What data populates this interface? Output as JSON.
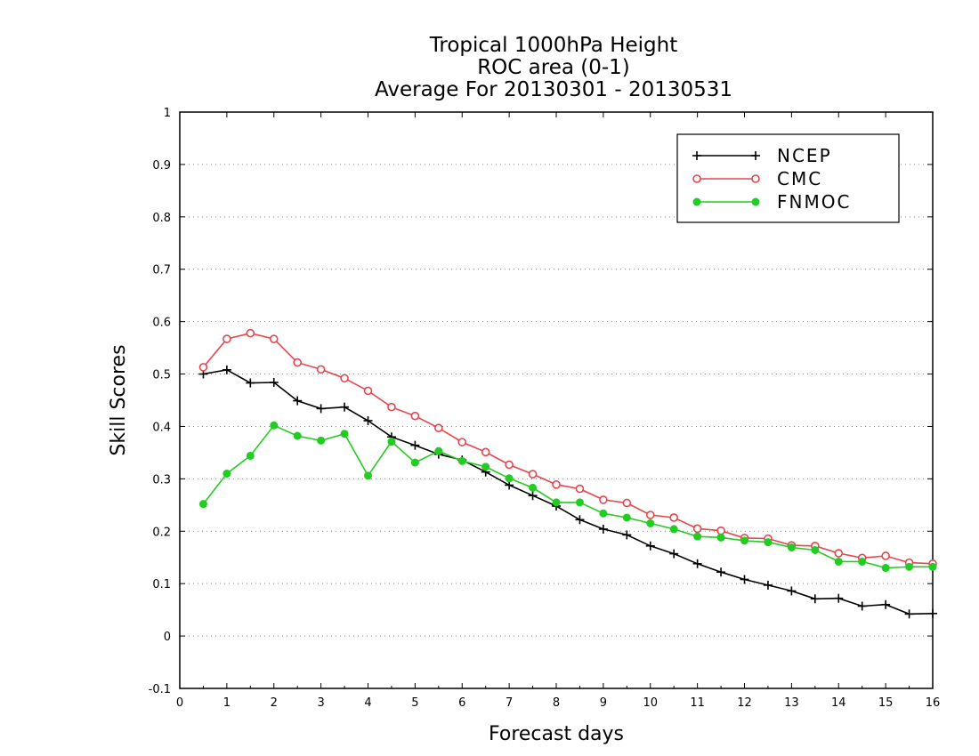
{
  "chart_data": {
    "type": "line",
    "title": [
      "Tropical 1000hPa Height",
      "ROC area (0-1)",
      "Average For 20130301 - 20130531"
    ],
    "xlabel": "Forecast days",
    "ylabel": "Skill Scores",
    "xlim": [
      0,
      16
    ],
    "ylim": [
      -0.1,
      1
    ],
    "xticks": [
      0,
      1,
      2,
      3,
      4,
      5,
      6,
      7,
      8,
      9,
      10,
      11,
      12,
      13,
      14,
      15,
      16
    ],
    "xtick_labels": [
      "0",
      "1",
      "2",
      "3",
      "4",
      "5",
      "6",
      "7",
      "8",
      "9",
      "10",
      "11",
      "12",
      "13",
      "14",
      "15",
      "16"
    ],
    "yticks": [
      -0.1,
      0,
      0.1,
      0.2,
      0.3,
      0.4,
      0.5,
      0.6,
      0.7,
      0.8,
      0.9,
      1
    ],
    "ytick_labels": [
      "-0.1",
      "0",
      "0.1",
      "0.2",
      "0.3",
      "0.4",
      "0.5",
      "0.6",
      "0.7",
      "0.8",
      "0.9",
      "1"
    ],
    "grid": true,
    "legend_position": "top-right",
    "x": [
      0.5,
      1,
      1.5,
      2,
      2.5,
      3,
      3.5,
      4,
      4.5,
      5,
      5.5,
      6,
      6.5,
      7,
      7.5,
      8,
      8.5,
      9,
      9.5,
      10,
      10.5,
      11,
      11.5,
      12,
      12.5,
      13,
      13.5,
      14,
      14.5,
      15,
      15.5,
      16
    ],
    "series": [
      {
        "name": "NCEP",
        "color": "#000000",
        "marker": "plus",
        "values": [
          0.5,
          0.508,
          0.483,
          0.484,
          0.449,
          0.434,
          0.437,
          0.411,
          0.38,
          0.364,
          0.347,
          0.336,
          0.313,
          0.288,
          0.268,
          0.248,
          0.222,
          0.204,
          0.193,
          0.172,
          0.157,
          0.138,
          0.122,
          0.108,
          0.097,
          0.086,
          0.071,
          0.072,
          0.057,
          0.06,
          0.042,
          0.043
        ]
      },
      {
        "name": "CMC",
        "color": "#e8444c",
        "marker": "open-circle",
        "values": [
          0.513,
          0.567,
          0.578,
          0.567,
          0.522,
          0.509,
          0.492,
          0.468,
          0.437,
          0.42,
          0.397,
          0.37,
          0.351,
          0.327,
          0.309,
          0.289,
          0.281,
          0.26,
          0.254,
          0.231,
          0.226,
          0.205,
          0.201,
          0.187,
          0.186,
          0.173,
          0.172,
          0.158,
          0.149,
          0.153,
          0.14,
          0.138
        ]
      },
      {
        "name": "FNMOC",
        "color": "#22cc22",
        "marker": "filled-circle",
        "values": [
          0.252,
          0.31,
          0.344,
          0.402,
          0.382,
          0.373,
          0.386,
          0.306,
          0.371,
          0.331,
          0.353,
          0.334,
          0.323,
          0.301,
          0.283,
          0.255,
          0.255,
          0.234,
          0.226,
          0.215,
          0.204,
          0.19,
          0.188,
          0.182,
          0.179,
          0.169,
          0.164,
          0.142,
          0.142,
          0.13,
          0.132,
          0.132
        ]
      }
    ]
  }
}
